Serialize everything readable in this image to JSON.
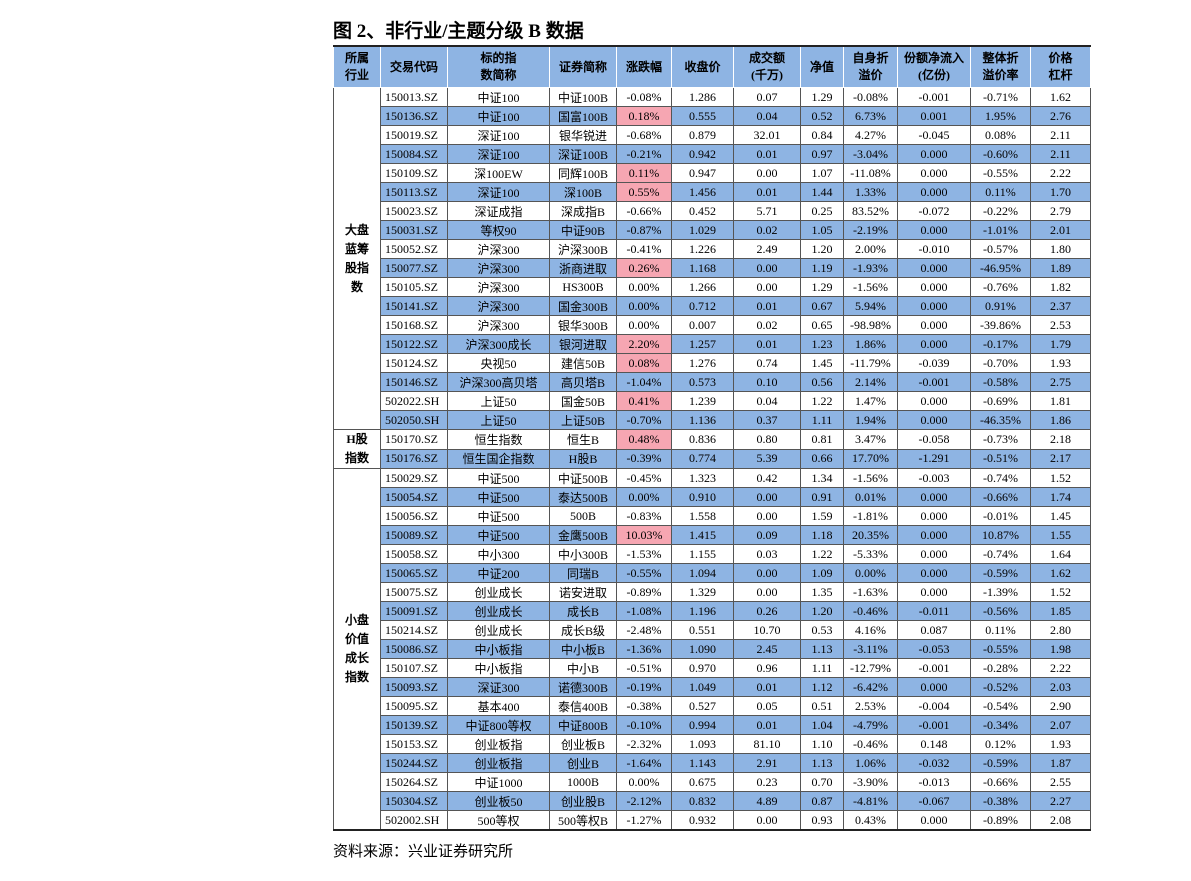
{
  "title": "图 2、非行业/主题分级 B 数据",
  "table": {
    "header": [
      [
        "所属",
        "行业"
      ],
      [
        "交易代码"
      ],
      [
        "标的指",
        "数简称"
      ],
      [
        "证券简称"
      ],
      [
        "涨跌幅"
      ],
      [
        "收盘价"
      ],
      [
        "成交额",
        "(千万)"
      ],
      [
        "净值"
      ],
      [
        "自身折",
        "溢价"
      ],
      [
        "份额净流入",
        "(亿份)"
      ],
      [
        "整体折",
        "溢价率"
      ],
      [
        "价格",
        "杠杆"
      ]
    ],
    "groups": [
      {
        "label": [
          "大盘",
          "蓝筹",
          "股指",
          "数"
        ],
        "rows": [
          [
            "150013.SZ",
            "中证100",
            "中证100B",
            "-0.08%",
            "1.286",
            "0.07",
            "1.29",
            "-0.08%",
            "-0.001",
            "-0.71%",
            "1.62"
          ],
          [
            "150136.SZ",
            "中证100",
            "国富100B",
            "0.18%",
            "0.555",
            "0.04",
            "0.52",
            "6.73%",
            "0.001",
            "1.95%",
            "2.76"
          ],
          [
            "150019.SZ",
            "深证100",
            "银华锐进",
            "-0.68%",
            "0.879",
            "32.01",
            "0.84",
            "4.27%",
            "-0.045",
            "0.08%",
            "2.11"
          ],
          [
            "150084.SZ",
            "深证100",
            "深证100B",
            "-0.21%",
            "0.942",
            "0.01",
            "0.97",
            "-3.04%",
            "0.000",
            "-0.60%",
            "2.11"
          ],
          [
            "150109.SZ",
            "深100EW",
            "同辉100B",
            "0.11%",
            "0.947",
            "0.00",
            "1.07",
            "-11.08%",
            "0.000",
            "-0.55%",
            "2.22"
          ],
          [
            "150113.SZ",
            "深证100",
            "深100B",
            "0.55%",
            "1.456",
            "0.01",
            "1.44",
            "1.33%",
            "0.000",
            "0.11%",
            "1.70"
          ],
          [
            "150023.SZ",
            "深证成指",
            "深成指B",
            "-0.66%",
            "0.452",
            "5.71",
            "0.25",
            "83.52%",
            "-0.072",
            "-0.22%",
            "2.79"
          ],
          [
            "150031.SZ",
            "等权90",
            "中证90B",
            "-0.87%",
            "1.029",
            "0.02",
            "1.05",
            "-2.19%",
            "0.000",
            "-1.01%",
            "2.01"
          ],
          [
            "150052.SZ",
            "沪深300",
            "沪深300B",
            "-0.41%",
            "1.226",
            "2.49",
            "1.20",
            "2.00%",
            "-0.010",
            "-0.57%",
            "1.80"
          ],
          [
            "150077.SZ",
            "沪深300",
            "浙商进取",
            "0.26%",
            "1.168",
            "0.00",
            "1.19",
            "-1.93%",
            "0.000",
            "-46.95%",
            "1.89"
          ],
          [
            "150105.SZ",
            "沪深300",
            "HS300B",
            "0.00%",
            "1.266",
            "0.00",
            "1.29",
            "-1.56%",
            "0.000",
            "-0.76%",
            "1.82"
          ],
          [
            "150141.SZ",
            "沪深300",
            "国金300B",
            "0.00%",
            "0.712",
            "0.01",
            "0.67",
            "5.94%",
            "0.000",
            "0.91%",
            "2.37"
          ],
          [
            "150168.SZ",
            "沪深300",
            "银华300B",
            "0.00%",
            "0.007",
            "0.02",
            "0.65",
            "-98.98%",
            "0.000",
            "-39.86%",
            "2.53"
          ],
          [
            "150122.SZ",
            "沪深300成长",
            "银河进取",
            "2.20%",
            "1.257",
            "0.01",
            "1.23",
            "1.86%",
            "0.000",
            "-0.17%",
            "1.79"
          ],
          [
            "150124.SZ",
            "央视50",
            "建信50B",
            "0.08%",
            "1.276",
            "0.74",
            "1.45",
            "-11.79%",
            "-0.039",
            "-0.70%",
            "1.93"
          ],
          [
            "150146.SZ",
            "沪深300高贝塔",
            "高贝塔B",
            "-1.04%",
            "0.573",
            "0.10",
            "0.56",
            "2.14%",
            "-0.001",
            "-0.58%",
            "2.75"
          ],
          [
            "502022.SH",
            "上证50",
            "国金50B",
            "0.41%",
            "1.239",
            "0.04",
            "1.22",
            "1.47%",
            "0.000",
            "-0.69%",
            "1.81"
          ],
          [
            "502050.SH",
            "上证50",
            "上证50B",
            "-0.70%",
            "1.136",
            "0.37",
            "1.11",
            "1.94%",
            "0.000",
            "-46.35%",
            "1.86"
          ]
        ]
      },
      {
        "label": [
          "H股",
          "指数"
        ],
        "rows": [
          [
            "150170.SZ",
            "恒生指数",
            "恒生B",
            "0.48%",
            "0.836",
            "0.80",
            "0.81",
            "3.47%",
            "-0.058",
            "-0.73%",
            "2.18"
          ],
          [
            "150176.SZ",
            "恒生国企指数",
            "H股B",
            "-0.39%",
            "0.774",
            "5.39",
            "0.66",
            "17.70%",
            "-1.291",
            "-0.51%",
            "2.17"
          ]
        ]
      },
      {
        "label": [
          "小盘",
          "价值",
          "成长",
          "指数"
        ],
        "rows": [
          [
            "150029.SZ",
            "中证500",
            "中证500B",
            "-0.45%",
            "1.323",
            "0.42",
            "1.34",
            "-1.56%",
            "-0.003",
            "-0.74%",
            "1.52"
          ],
          [
            "150054.SZ",
            "中证500",
            "泰达500B",
            "0.00%",
            "0.910",
            "0.00",
            "0.91",
            "0.01%",
            "0.000",
            "-0.66%",
            "1.74"
          ],
          [
            "150056.SZ",
            "中证500",
            "500B",
            "-0.83%",
            "1.558",
            "0.00",
            "1.59",
            "-1.81%",
            "0.000",
            "-0.01%",
            "1.45"
          ],
          [
            "150089.SZ",
            "中证500",
            "金鹰500B",
            "10.03%",
            "1.415",
            "0.09",
            "1.18",
            "20.35%",
            "0.000",
            "10.87%",
            "1.55"
          ],
          [
            "150058.SZ",
            "中小300",
            "中小300B",
            "-1.53%",
            "1.155",
            "0.03",
            "1.22",
            "-5.33%",
            "0.000",
            "-0.74%",
            "1.64"
          ],
          [
            "150065.SZ",
            "中证200",
            "同瑞B",
            "-0.55%",
            "1.094",
            "0.00",
            "1.09",
            "0.00%",
            "0.000",
            "-0.59%",
            "1.62"
          ],
          [
            "150075.SZ",
            "创业成长",
            "诺安进取",
            "-0.89%",
            "1.329",
            "0.00",
            "1.35",
            "-1.63%",
            "0.000",
            "-1.39%",
            "1.52"
          ],
          [
            "150091.SZ",
            "创业成长",
            "成长B",
            "-1.08%",
            "1.196",
            "0.26",
            "1.20",
            "-0.46%",
            "-0.011",
            "-0.56%",
            "1.85"
          ],
          [
            "150214.SZ",
            "创业成长",
            "成长B级",
            "-2.48%",
            "0.551",
            "10.70",
            "0.53",
            "4.16%",
            "0.087",
            "0.11%",
            "2.80"
          ],
          [
            "150086.SZ",
            "中小板指",
            "中小板B",
            "-1.36%",
            "1.090",
            "2.45",
            "1.13",
            "-3.11%",
            "-0.053",
            "-0.55%",
            "1.98"
          ],
          [
            "150107.SZ",
            "中小板指",
            "中小B",
            "-0.51%",
            "0.970",
            "0.96",
            "1.11",
            "-12.79%",
            "-0.001",
            "-0.28%",
            "2.22"
          ],
          [
            "150093.SZ",
            "深证300",
            "诺德300B",
            "-0.19%",
            "1.049",
            "0.01",
            "1.12",
            "-6.42%",
            "0.000",
            "-0.52%",
            "2.03"
          ],
          [
            "150095.SZ",
            "基本400",
            "泰信400B",
            "-0.38%",
            "0.527",
            "0.05",
            "0.51",
            "2.53%",
            "-0.004",
            "-0.54%",
            "2.90"
          ],
          [
            "150139.SZ",
            "中证800等权",
            "中证800B",
            "-0.10%",
            "0.994",
            "0.01",
            "1.04",
            "-4.79%",
            "-0.001",
            "-0.34%",
            "2.07"
          ],
          [
            "150153.SZ",
            "创业板指",
            "创业板B",
            "-2.32%",
            "1.093",
            "81.10",
            "1.10",
            "-0.46%",
            "0.148",
            "0.12%",
            "1.93"
          ],
          [
            "150244.SZ",
            "创业板指",
            "创业B",
            "-1.64%",
            "1.143",
            "2.91",
            "1.13",
            "1.06%",
            "-0.032",
            "-0.59%",
            "1.87"
          ],
          [
            "150264.SZ",
            "中证1000",
            "1000B",
            "0.00%",
            "0.675",
            "0.23",
            "0.70",
            "-3.90%",
            "-0.013",
            "-0.66%",
            "2.55"
          ],
          [
            "150304.SZ",
            "创业板50",
            "创业股B",
            "-2.12%",
            "0.832",
            "4.89",
            "0.87",
            "-4.81%",
            "-0.067",
            "-0.38%",
            "2.27"
          ],
          [
            "502002.SH",
            "500等权",
            "500等权B",
            "-1.27%",
            "0.932",
            "0.00",
            "0.93",
            "0.43%",
            "0.000",
            "-0.89%",
            "2.08"
          ]
        ]
      }
    ]
  },
  "source": "资料来源：兴业证券研究所"
}
